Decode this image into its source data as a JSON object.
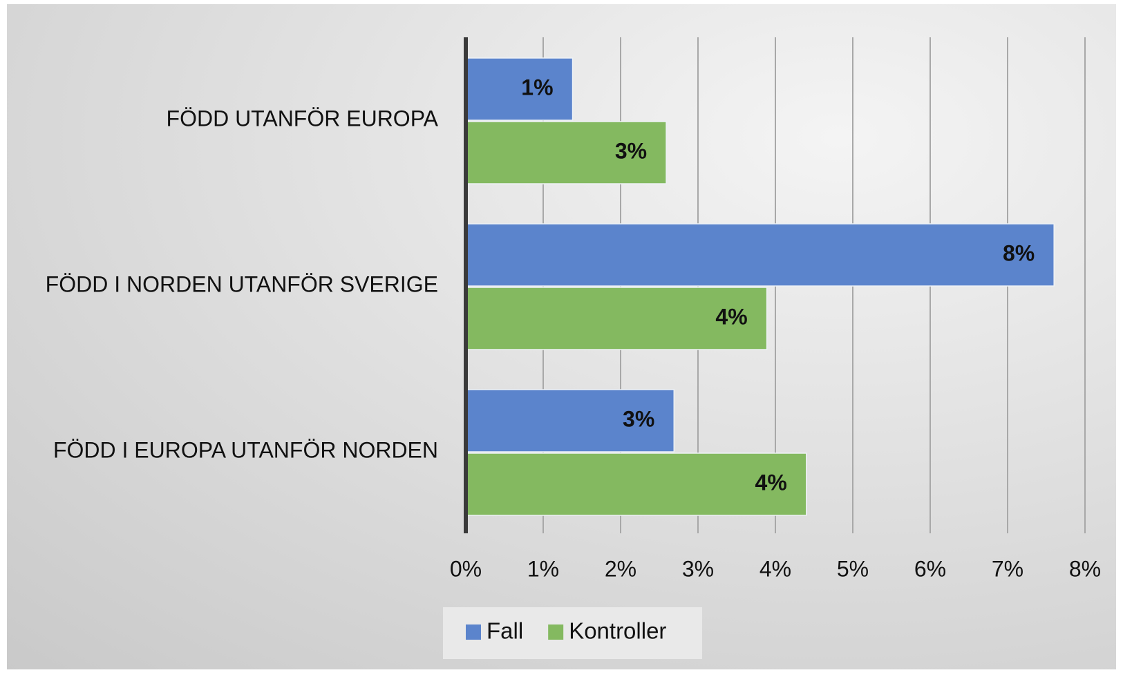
{
  "chart_data": {
    "type": "bar",
    "orientation": "horizontal",
    "categories": [
      "FÖDD UTANFÖR EUROPA",
      "FÖDD I NORDEN UTANFÖR SVERIGE",
      "FÖDD I EUROPA UTANFÖR NORDEN"
    ],
    "series": [
      {
        "name": "Fall",
        "color": "#5b84cc",
        "values": [
          1.38,
          7.6,
          2.69
        ],
        "value_labels": [
          "1%",
          "8%",
          "3%"
        ]
      },
      {
        "name": "Kontroller",
        "color": "#84b960",
        "values": [
          2.59,
          3.89,
          4.4
        ],
        "value_labels": [
          "3%",
          "4%",
          "4%"
        ]
      }
    ],
    "xlim": [
      0,
      8
    ],
    "xticks": [
      {
        "value": 0,
        "label": "0%"
      },
      {
        "value": 1,
        "label": "1%"
      },
      {
        "value": 2,
        "label": "2%"
      },
      {
        "value": 3,
        "label": "3%"
      },
      {
        "value": 4,
        "label": "4%"
      },
      {
        "value": 5,
        "label": "5%"
      },
      {
        "value": 6,
        "label": "6%"
      },
      {
        "value": 7,
        "label": "7%"
      },
      {
        "value": 8,
        "label": "8%"
      }
    ],
    "grid": true,
    "legend": "bottom"
  }
}
